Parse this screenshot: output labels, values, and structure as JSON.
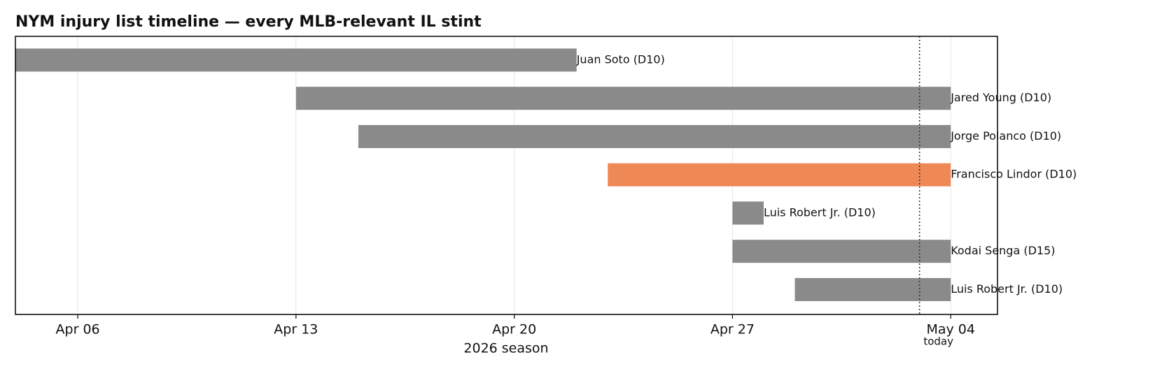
{
  "chart_data": {
    "type": "gantt",
    "title": "NYM injury list timeline — every MLB-relevant IL stint",
    "xlabel": "2026 season",
    "xlim": [
      "2026-04-04",
      "2026-05-05T12:00"
    ],
    "xticks": [
      {
        "value": "2026-04-06",
        "label": "Apr 06"
      },
      {
        "value": "2026-04-13",
        "label": "Apr 13"
      },
      {
        "value": "2026-04-20",
        "label": "Apr 20"
      },
      {
        "value": "2026-04-27",
        "label": "Apr 27"
      },
      {
        "value": "2026-05-04",
        "label": "May 04"
      }
    ],
    "grid": true,
    "bars": [
      {
        "label": "Juan Soto (D10)",
        "start": "2026-04-04",
        "end": "2026-04-22",
        "color": "#8a8a8a"
      },
      {
        "label": "Jared Young (D10)",
        "start": "2026-04-13",
        "end": "2026-05-04",
        "color": "#8a8a8a"
      },
      {
        "label": "Jorge Polanco (D10)",
        "start": "2026-04-15",
        "end": "2026-05-04",
        "color": "#8a8a8a"
      },
      {
        "label": "Francisco Lindor (D10)",
        "start": "2026-04-23",
        "end": "2026-05-04",
        "color": "#ee8855"
      },
      {
        "label": "Luis Robert Jr. (D10)",
        "start": "2026-04-27",
        "end": "2026-04-28",
        "color": "#8a8a8a"
      },
      {
        "label": "Kodai Senga (D15)",
        "start": "2026-04-27",
        "end": "2026-05-04",
        "color": "#8a8a8a"
      },
      {
        "label": "Luis Robert Jr. (D10)",
        "start": "2026-04-29",
        "end": "2026-05-04",
        "color": "#8a8a8a"
      }
    ],
    "today": {
      "x": "2026-05-03",
      "label": "today"
    }
  }
}
